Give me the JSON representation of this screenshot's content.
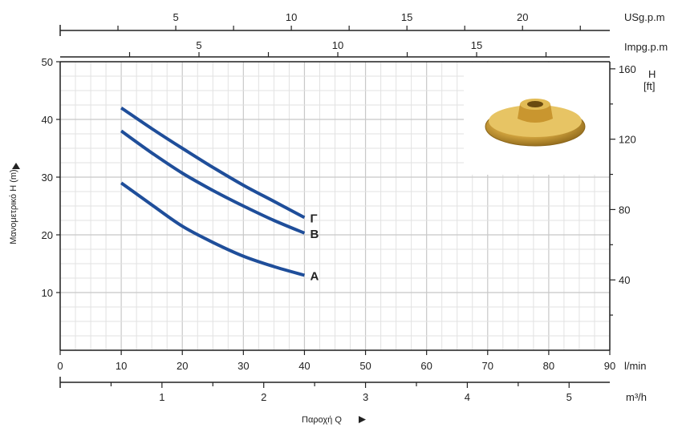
{
  "chart_data": {
    "type": "line",
    "x_unit": "l/min",
    "y_unit_left": "Μανομετρικό H (m)",
    "y_unit_right_top": "H",
    "y_unit_right_bottom": "[ft]",
    "xlabel": "Παροχή Q",
    "xlim": [
      0,
      90
    ],
    "ylim": [
      0,
      50
    ],
    "x_ticks": [
      0,
      10,
      20,
      30,
      40,
      50,
      60,
      70,
      80,
      90
    ],
    "y_ticks": [
      10,
      20,
      30,
      40,
      50
    ],
    "ft_ticks": [
      40,
      80,
      120,
      160
    ],
    "m3h_unit": "m³/h",
    "m3h_ticks": [
      1,
      2,
      3,
      4,
      5
    ],
    "usgpm_unit": "USg.p.m",
    "usgpm_ticks": [
      5,
      10,
      15,
      20
    ],
    "impgpm_unit": "Impg.p.m",
    "impgpm_ticks": [
      5,
      10,
      15
    ],
    "grid": true,
    "line_color": "#1f4e9a",
    "series": [
      {
        "name": "Γ",
        "x": [
          10,
          15,
          20,
          25,
          30,
          35,
          40
        ],
        "y": [
          42,
          38.4,
          35,
          31.7,
          28.6,
          25.8,
          23
        ]
      },
      {
        "name": "B",
        "x": [
          10,
          15,
          20,
          25,
          30,
          35,
          40
        ],
        "y": [
          38,
          34.2,
          30.7,
          27.7,
          25,
          22.5,
          20.3
        ]
      },
      {
        "name": "A",
        "x": [
          10,
          15,
          20,
          25,
          30,
          35,
          40
        ],
        "y": [
          29,
          25.2,
          21.5,
          18.7,
          16.3,
          14.5,
          13
        ]
      }
    ]
  }
}
